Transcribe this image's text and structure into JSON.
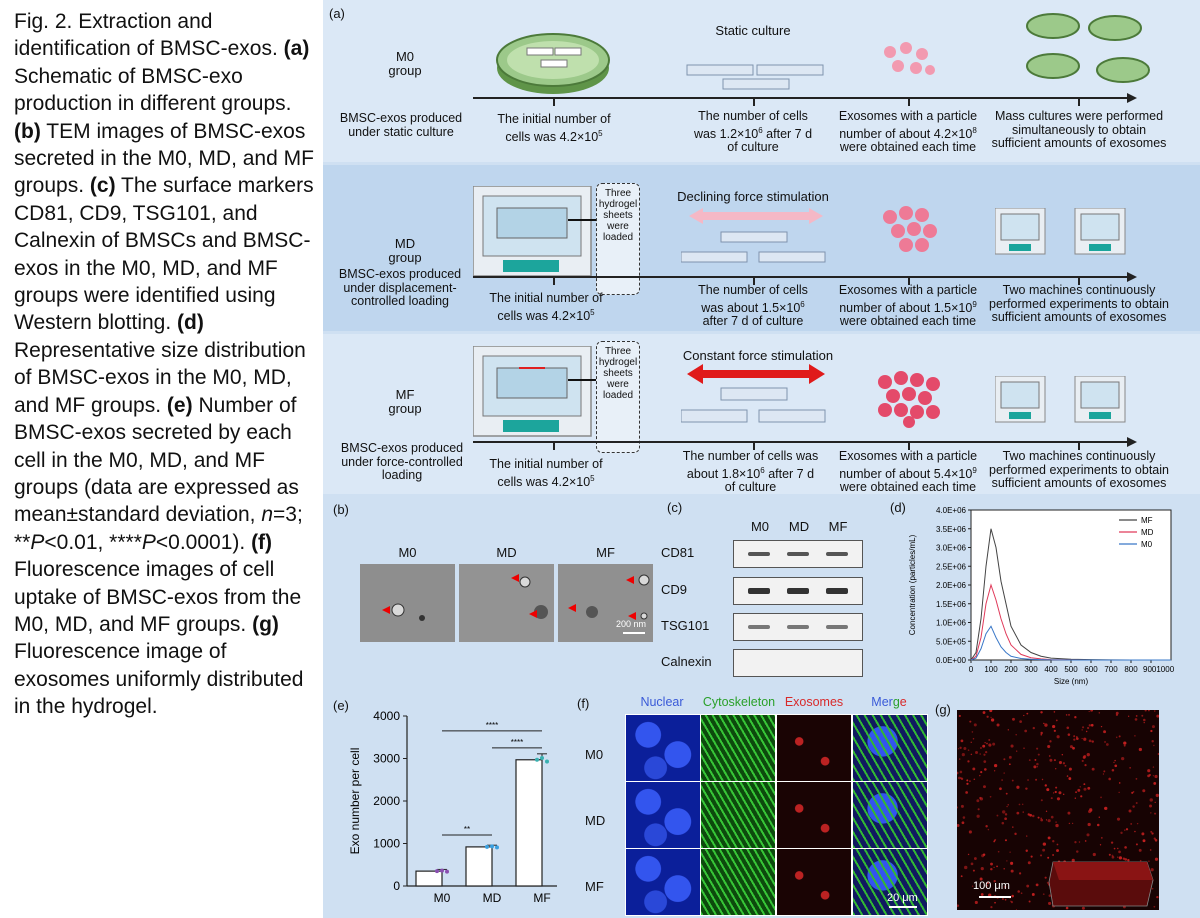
{
  "caption": {
    "fig_label": "Fig. 2.",
    "title": "Extraction and identification of BMSC-exos.",
    "a_label": "(a)",
    "a_text": "Schematic of BMSC-exo production in different groups.",
    "b_label": "(b)",
    "b_text": "TEM images of BMSC-exos secreted in the M0, MD, and MF groups.",
    "c_label": "(c)",
    "c_text": "The surface markers CD81, CD9, TSG101, and Calnexin of BMSCs and BMSC-exos in the M0, MD, and MF groups were identified using Western blotting.",
    "d_label": "(d)",
    "d_text": "Representative size distribution of BMSC-exos in the M0, MD, and MF groups.",
    "e_label": "(e)",
    "e_text_1": "Number of BMSC-exos secreted by each cell in the M0, MD, and MF groups (data are expressed as mean±standard deviation, ",
    "e_n": "n",
    "e_text_2": "=3; **",
    "e_p1": "P",
    "e_text_3": "<0.01, ****",
    "e_p2": "P",
    "e_text_4": "<0.0001).",
    "f_label": "(f)",
    "f_text": "Fluorescence images of cell uptake of BMSC-exos from the M0, MD, and MF groups.",
    "g_label": "(g)",
    "g_text": "Fluorescence image of exosomes uniformly distributed in the hydrogel."
  },
  "panel_a": {
    "label": "(a)",
    "rows": [
      {
        "group": "M0\ngroup",
        "produced": "BMSC-exos produced\nunder static culture",
        "initial": "The initial number of\ncells was 4.2×10",
        "initial_sup": "5",
        "stim": "Static culture",
        "cells": "The number of cells\nwas 1.2×10",
        "cells_sup": "6",
        "cells_tail": " after 7 d\nof culture",
        "exo": "Exosomes with a particle\nnumber of about 4.2×10",
        "exo_sup": "8",
        "exo_tail": "\nwere obtained each time",
        "final": "Mass cultures were performed\nsimultaneously to obtain\nsufficient amounts of exosomes"
      },
      {
        "group": "MD\ngroup",
        "produced": "BMSC-exos produced\nunder displacement-\ncontrolled loading",
        "initial": "The initial number of\ncells was 4.2×10",
        "initial_sup": "5",
        "stim": "Declining force stimulation",
        "sheets": "Three\nhydrogel\nsheets\nwere\nloaded",
        "cells": "The number of cells\nwas about 1.5×10",
        "cells_sup": "6",
        "cells_tail": "\nafter 7 d of culture",
        "exo": "Exosomes with a particle\nnumber of about 1.5×10",
        "exo_sup": "9",
        "exo_tail": "\nwere obtained each time",
        "final": "Two machines continuously\nperformed experiments to obtain\nsufficient amounts of exosomes"
      },
      {
        "group": "MF\ngroup",
        "produced": "BMSC-exos produced\nunder force-controlled\nloading",
        "initial": "The initial number of\ncells was 4.2×10",
        "initial_sup": "5",
        "stim": "Constant force stimulation",
        "sheets": "Three\nhydrogel\nsheets\nwere\nloaded",
        "cells": "The number of cells was\nabout 1.8×10",
        "cells_sup": "6",
        "cells_tail": " after 7 d\nof culture",
        "exo": "Exosomes with a particle\nnumber of about 5.4×10",
        "exo_sup": "9",
        "exo_tail": "\nwere obtained each time",
        "final": "Two machines continuously\nperformed experiments to obtain\nsufficient amounts of exosomes"
      }
    ]
  },
  "panel_b": {
    "label": "(b)",
    "groups": [
      "M0",
      "MD",
      "MF"
    ],
    "scale": "200 nm"
  },
  "panel_c": {
    "label": "(c)",
    "groups": [
      "M0",
      "MD",
      "MF"
    ],
    "markers": [
      "CD81",
      "CD9",
      "TSG101",
      "Calnexin"
    ]
  },
  "panel_f": {
    "label": "(f)",
    "columns": [
      "Nuclear",
      "Cytoskeleton",
      "Exosomes",
      "Merge"
    ],
    "merge_parts": [
      "Mer",
      "g",
      "e"
    ],
    "rows": [
      "M0",
      "MD",
      "MF"
    ],
    "scale": "20 μm"
  },
  "panel_g": {
    "label": "(g)",
    "scale": "100 μm"
  },
  "chart_data": [
    {
      "type": "line",
      "panel": "(d)",
      "xlabel": "Size (nm)",
      "ylabel": "Concentration (particles/mL)",
      "xlim": [
        0,
        1000
      ],
      "ylim": [
        0,
        4000000
      ],
      "x_ticks": [
        "0",
        "100",
        "200",
        "300",
        "400",
        "500",
        "600",
        "700",
        "800",
        "9001000"
      ],
      "y_ticks": [
        "0.0E+00",
        "5.0E+05",
        "1.0E+06",
        "1.5E+06",
        "2.0E+06",
        "2.5E+06",
        "3.0E+06",
        "3.5E+06",
        "4.0E+06"
      ],
      "legend_position": "top-right",
      "x": [
        0,
        25,
        50,
        75,
        100,
        125,
        150,
        175,
        200,
        250,
        300,
        350,
        400,
        500,
        600,
        700,
        800,
        900,
        1000
      ],
      "series": [
        {
          "name": "MF",
          "color": "#444444",
          "values": [
            0,
            200000,
            1100000,
            2500000,
            3500000,
            3000000,
            2100000,
            1500000,
            900000,
            400000,
            200000,
            100000,
            50000,
            20000,
            10000,
            5000,
            0,
            0,
            0
          ]
        },
        {
          "name": "MD",
          "color": "#e03a5a",
          "values": [
            0,
            100000,
            600000,
            1500000,
            2000000,
            1600000,
            1100000,
            700000,
            400000,
            150000,
            60000,
            30000,
            10000,
            5000,
            0,
            0,
            0,
            0,
            0
          ]
        },
        {
          "name": "M0",
          "color": "#3a78c8",
          "values": [
            0,
            50000,
            300000,
            700000,
            900000,
            600000,
            350000,
            200000,
            100000,
            40000,
            20000,
            10000,
            5000,
            0,
            0,
            0,
            0,
            0,
            0
          ]
        }
      ]
    },
    {
      "type": "bar",
      "panel": "(e)",
      "categories": [
        "M0",
        "MD",
        "MF"
      ],
      "values": [
        350,
        920,
        2970
      ],
      "errors": [
        40,
        40,
        140
      ],
      "ylabel": "Exo number per cell",
      "ylim": [
        0,
        4000
      ],
      "y_ticks": [
        "0",
        "1000",
        "2000",
        "3000",
        "4000"
      ],
      "dot_colors": [
        "#8a4fb0",
        "#3aa0e0",
        "#3ab0b0"
      ],
      "significance": [
        {
          "from": "M0",
          "to": "MD",
          "label": "**"
        },
        {
          "from": "MD",
          "to": "MF",
          "label": "****"
        },
        {
          "from": "M0",
          "to": "MF",
          "label": "****"
        }
      ]
    }
  ]
}
